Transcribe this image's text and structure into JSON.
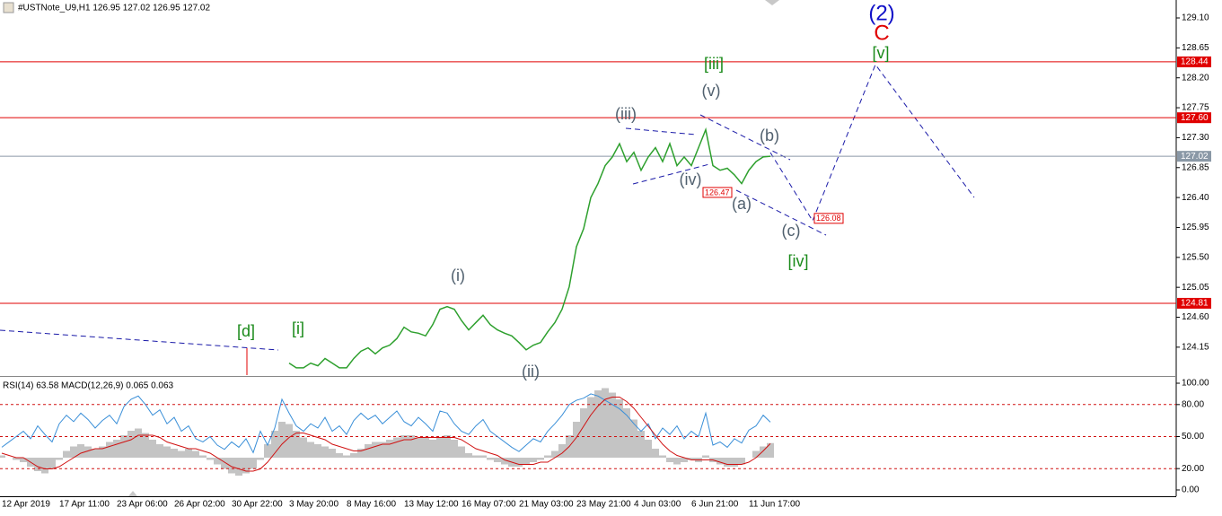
{
  "chart_data": [
    {
      "type": "line",
      "title": "#USTNote_U9,H1  126.95 127.02 126.95 127.02",
      "categories": [
        "12 Apr 2019",
        null,
        null,
        null,
        null,
        null,
        null,
        null,
        "17 Apr 11:00",
        null,
        null,
        null,
        null,
        null,
        null,
        null,
        "23 Apr 06:00",
        null,
        null,
        null,
        null,
        null,
        null,
        null,
        "26 Apr 02:00",
        null,
        null,
        null,
        null,
        null,
        null,
        null,
        "30 Apr 22:00",
        null,
        null,
        null,
        null,
        null,
        null,
        null,
        "3 May 20:00",
        null,
        null,
        null,
        null,
        null,
        null,
        null,
        "8 May 16:00",
        null,
        null,
        null,
        null,
        null,
        null,
        null,
        "13 May 12:00",
        null,
        null,
        null,
        null,
        null,
        null,
        null,
        "16 May 07:00",
        null,
        null,
        null,
        null,
        null,
        null,
        null,
        "21 May 03:00",
        null,
        null,
        null,
        null,
        null,
        null,
        null,
        "23 May 21:00",
        null,
        null,
        null,
        null,
        null,
        null,
        null,
        "4 Jun 03:00",
        null,
        null,
        null,
        null,
        null,
        null,
        null,
        "6 Jun 21:00",
        null,
        null,
        null,
        null,
        null,
        null,
        null,
        "11 Jun 17:00",
        null,
        null,
        null
      ],
      "values": [
        null,
        null,
        null,
        null,
        null,
        null,
        null,
        null,
        null,
        null,
        null,
        null,
        null,
        null,
        null,
        null,
        null,
        null,
        null,
        null,
        null,
        null,
        null,
        null,
        null,
        null,
        null,
        null,
        null,
        null,
        null,
        null,
        null,
        null,
        null,
        null,
        null,
        null,
        null,
        null,
        123.91,
        123.84,
        123.84,
        123.91,
        123.87,
        123.98,
        123.91,
        123.84,
        123.84,
        123.98,
        124.09,
        124.14,
        124.05,
        124.14,
        124.18,
        124.28,
        124.45,
        124.38,
        124.36,
        124.32,
        124.49,
        124.72,
        124.76,
        124.72,
        124.55,
        124.41,
        124.52,
        124.63,
        124.49,
        124.41,
        124.36,
        124.32,
        124.22,
        124.11,
        124.18,
        124.22,
        124.38,
        124.52,
        124.72,
        125.06,
        125.66,
        125.93,
        126.4,
        126.61,
        126.88,
        127.01,
        127.21,
        126.94,
        127.08,
        126.81,
        127.01,
        127.15,
        126.94,
        127.21,
        126.88,
        127.01,
        126.88,
        127.15,
        127.42,
        126.88,
        126.81,
        126.84,
        126.74,
        126.61,
        126.81,
        126.94,
        127.01,
        127.02
      ],
      "color": "#2ea02e",
      "ylim": [
        123.73,
        129.37
      ],
      "yticks": [
        {
          "value": 129.1,
          "label": "129.10"
        },
        128.65,
        {
          "value": 128.2,
          "label": "128.20"
        },
        127.75,
        {
          "value": 127.3,
          "label": "127.30"
        },
        126.85,
        {
          "value": 126.4,
          "label": "126.40"
        },
        125.95,
        {
          "value": 125.5,
          "label": "125.50"
        },
        125.05,
        {
          "value": 124.6,
          "label": "124.60"
        },
        124.15
      ],
      "levels": [
        128.44,
        {
          "value": 127.6,
          "label": "127.60"
        },
        124.81
      ],
      "level_color": "#e00000",
      "current_price": 127.02,
      "price_labels": [
        126.47,
        126.08
      ],
      "annotations": [
        {
          "text": "(2)",
          "color": "#1010c8"
        },
        {
          "text": "C",
          "color": "#e00000"
        },
        {
          "text": "[v]",
          "color": "#1a8a1a"
        },
        {
          "text": "[iii]",
          "color": "#1a8a1a"
        },
        {
          "text": "(v)",
          "color": "#50606e"
        },
        {
          "text": "(iii)",
          "color": "#50606e"
        },
        {
          "text": "(b)",
          "color": "#50606e"
        },
        {
          "text": "(iv)",
          "color": "#50606e"
        },
        {
          "text": "(a)",
          "color": "#50606e"
        },
        {
          "text": "(c)",
          "color": "#50606e"
        },
        {
          "text": "[iv]",
          "color": "#1a8a1a"
        },
        {
          "text": "(i)",
          "color": "#50606e"
        },
        {
          "text": "[d]",
          "color": "#1a8a1a"
        },
        {
          "text": "[i]",
          "color": "#1a8a1a"
        },
        {
          "text": "(ii)",
          "color": "#50606e"
        }
      ]
    },
    {
      "type": "line",
      "title": "RSI(14) 63.58 MACD(12,26,9) 0.065 0.063",
      "ylim": [
        -5.9,
        105.9
      ],
      "yticks": [
        {
          "value": 100,
          "label": "100.00"
        },
        {
          "value": 80,
          "label": "80.00"
        },
        {
          "value": 50,
          "label": "50.00"
        },
        {
          "value": 20,
          "label": "20.00"
        },
        {
          "value": 0,
          "label": "0.00"
        }
      ],
      "hlines": [
        80,
        50,
        20
      ],
      "y2lim": [
        -0.172,
        0.36
      ],
      "series": [
        {
          "color": "#c4c4c4",
          "axis": "y2",
          "style": "histogram",
          "values": [
            0.01,
            0,
            -0.01,
            -0.02,
            -0.04,
            -0.06,
            -0.07,
            -0.05,
            -0.01,
            0.03,
            0.05,
            0.06,
            0.05,
            0.04,
            0.05,
            0.07,
            0.08,
            0.1,
            0.12,
            0.13,
            0.11,
            0.08,
            0.06,
            0.05,
            0.04,
            0.03,
            0.04,
            0.03,
            0.01,
            -0.01,
            -0.03,
            -0.05,
            -0.07,
            -0.08,
            -0.07,
            -0.05,
            -0.01,
            0.06,
            0.12,
            0.16,
            0.15,
            0.12,
            0.09,
            0.07,
            0.06,
            0.05,
            0.04,
            0.02,
            0.01,
            0.02,
            0.04,
            0.06,
            0.07,
            0.07,
            0.08,
            0.09,
            0.1,
            0.1,
            0.09,
            0.09,
            0.08,
            0.09,
            0.1,
            0.08,
            0.05,
            0.02,
            0.01,
            0.01,
            -0.01,
            -0.02,
            -0.03,
            -0.04,
            -0.04,
            -0.03,
            -0.02,
            -0.01,
            0.01,
            0.03,
            0.06,
            0.1,
            0.16,
            0.22,
            0.27,
            0.3,
            0.31,
            0.29,
            0.26,
            0.22,
            0.17,
            0.12,
            0.08,
            0.04,
            0.01,
            -0.02,
            -0.03,
            -0.02,
            -0.01,
            -0.02,
            0.01,
            -0.02,
            -0.03,
            -0.04,
            -0.04,
            -0.03,
            0,
            0.03,
            0.05,
            0.065
          ]
        },
        {
          "color": "#3a8fd8",
          "values": [
            40,
            45,
            50,
            55,
            48,
            60,
            52,
            45,
            62,
            70,
            64,
            72,
            66,
            58,
            65,
            70,
            62,
            78,
            85,
            88,
            80,
            70,
            75,
            62,
            68,
            55,
            60,
            48,
            45,
            50,
            42,
            38,
            45,
            40,
            48,
            35,
            55,
            42,
            58,
            85,
            72,
            60,
            55,
            62,
            58,
            68,
            55,
            60,
            52,
            65,
            72,
            66,
            70,
            62,
            68,
            74,
            64,
            60,
            68,
            62,
            55,
            74,
            72,
            62,
            55,
            52,
            60,
            66,
            55,
            50,
            45,
            40,
            36,
            42,
            48,
            45,
            55,
            62,
            70,
            80,
            84,
            86,
            90,
            88,
            84,
            80,
            76,
            70,
            62,
            55,
            62,
            48,
            58,
            52,
            60,
            48,
            55,
            50,
            72,
            42,
            45,
            40,
            48,
            44,
            56,
            60,
            70,
            63.58
          ]
        },
        {
          "color": "#d01010",
          "axis": "y2",
          "values": [
            0.02,
            0.01,
            0,
            0,
            -0.02,
            -0.04,
            -0.05,
            -0.05,
            -0.04,
            -0.02,
            0,
            0.02,
            0.03,
            0.04,
            0.04,
            0.05,
            0.06,
            0.07,
            0.08,
            0.1,
            0.1,
            0.1,
            0.09,
            0.07,
            0.06,
            0.05,
            0.04,
            0.04,
            0.03,
            0.02,
            0,
            -0.02,
            -0.04,
            -0.05,
            -0.06,
            -0.06,
            -0.05,
            -0.02,
            0.02,
            0.06,
            0.09,
            0.11,
            0.11,
            0.1,
            0.09,
            0.08,
            0.06,
            0.05,
            0.04,
            0.03,
            0.03,
            0.04,
            0.05,
            0.06,
            0.06,
            0.07,
            0.08,
            0.08,
            0.09,
            0.09,
            0.09,
            0.09,
            0.09,
            0.09,
            0.08,
            0.06,
            0.04,
            0.03,
            0.02,
            0.01,
            -0.01,
            -0.02,
            -0.03,
            -0.03,
            -0.03,
            -0.02,
            -0.02,
            0,
            0.02,
            0.05,
            0.09,
            0.14,
            0.19,
            0.23,
            0.26,
            0.27,
            0.27,
            0.25,
            0.22,
            0.18,
            0.14,
            0.1,
            0.06,
            0.03,
            0.01,
            0,
            -0.01,
            -0.01,
            -0.01,
            -0.01,
            -0.02,
            -0.03,
            -0.03,
            -0.03,
            -0.02,
            0,
            0.03,
            0.063
          ]
        }
      ]
    }
  ]
}
